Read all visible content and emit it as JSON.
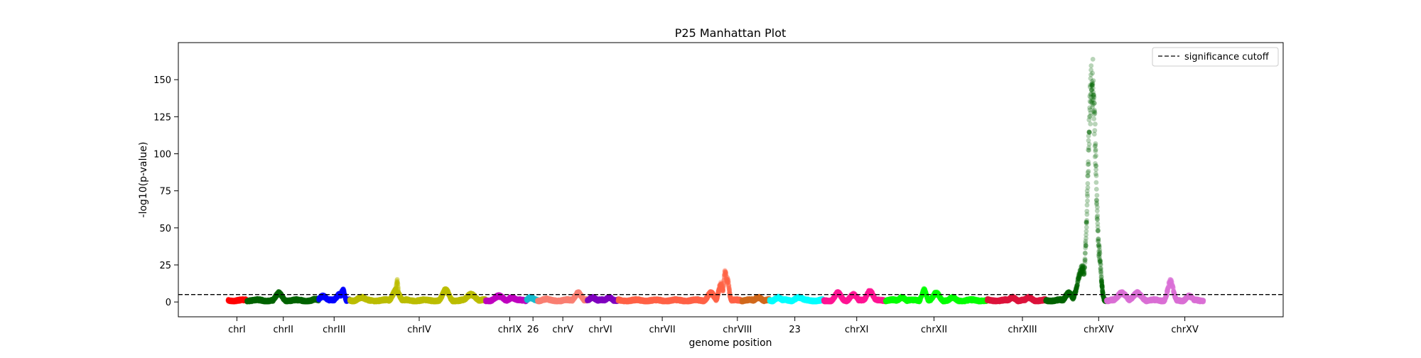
{
  "chart_data": {
    "type": "scatter",
    "title": "P25 Manhattan Plot",
    "xlabel": "genome position",
    "ylabel": "-log10(p-value)",
    "ylim": [
      -10,
      175
    ],
    "y_ticks": [
      0,
      25,
      50,
      75,
      100,
      125,
      150
    ],
    "x_range": [
      0,
      1000
    ],
    "grid": false,
    "legend": {
      "placement": "top-right",
      "entries": [
        {
          "label": "significance cutoff",
          "style": "dashed",
          "color": "#000000"
        }
      ]
    },
    "significance_cutoff": 5,
    "x_tick_labels": [
      {
        "label": "chrI",
        "x": 53
      },
      {
        "label": "chrII",
        "x": 95
      },
      {
        "label": "chrIII",
        "x": 141
      },
      {
        "label": "chrIV",
        "x": 218
      },
      {
        "label": "chrIX",
        "x": 300
      },
      {
        "label": "26",
        "x": 321
      },
      {
        "label": "chrV",
        "x": 348
      },
      {
        "label": "chrVI",
        "x": 382
      },
      {
        "label": "chrVII",
        "x": 438
      },
      {
        "label": "chrVIII",
        "x": 506
      },
      {
        "label": "23",
        "x": 558
      },
      {
        "label": "chrXI",
        "x": 614
      },
      {
        "label": "chrXII",
        "x": 684
      },
      {
        "label": "chrXIII",
        "x": 764
      },
      {
        "label": "chrXIV",
        "x": 833
      },
      {
        "label": "chrXV",
        "x": 911
      }
    ],
    "series": [
      {
        "color": "#ff0000",
        "x": [
          45,
          62
        ],
        "peaks": []
      },
      {
        "color": "#006400",
        "x": [
          62,
          127
        ],
        "peaks": [
          {
            "x": 91,
            "y": 6,
            "w": 3
          },
          {
            "x": 124,
            "y": 2,
            "w": 3
          }
        ]
      },
      {
        "color": "#0000ff",
        "x": [
          127,
          155
        ],
        "peaks": [
          {
            "x": 131,
            "y": 4,
            "w": 3
          },
          {
            "x": 146,
            "y": 5,
            "w": 3
          },
          {
            "x": 149,
            "y": 8,
            "w": 1.5
          }
        ]
      },
      {
        "color": "#bcbd00",
        "x": [
          155,
          278
        ],
        "peaks": [
          {
            "x": 166,
            "y": 3,
            "w": 4
          },
          {
            "x": 197,
            "y": 8,
            "w": 3
          },
          {
            "x": 198,
            "y": 14,
            "w": 1
          },
          {
            "x": 242,
            "y": 8,
            "w": 3
          },
          {
            "x": 265,
            "y": 5,
            "w": 4
          }
        ]
      },
      {
        "color": "#c000c0",
        "x": [
          278,
          315
        ],
        "peaks": [
          {
            "x": 290,
            "y": 4,
            "w": 4
          },
          {
            "x": 302,
            "y": 3,
            "w": 3
          }
        ]
      },
      {
        "color": "#17becf",
        "x": [
          315,
          325
        ],
        "peaks": [
          {
            "x": 319,
            "y": 3,
            "w": 3
          }
        ]
      },
      {
        "color": "#fa8072",
        "x": [
          325,
          370
        ],
        "peaks": [
          {
            "x": 333,
            "y": 2,
            "w": 4
          },
          {
            "x": 362,
            "y": 6,
            "w": 3
          }
        ]
      },
      {
        "color": "#8000c0",
        "x": [
          370,
          398
        ],
        "peaks": [
          {
            "x": 375,
            "y": 3,
            "w": 3
          },
          {
            "x": 390,
            "y": 3,
            "w": 3
          }
        ]
      },
      {
        "color": "#ff6347",
        "x": [
          398,
          510
        ],
        "peaks": [
          {
            "x": 482,
            "y": 6,
            "w": 3
          },
          {
            "x": 491,
            "y": 12,
            "w": 2
          },
          {
            "x": 495,
            "y": 20,
            "w": 1.5
          },
          {
            "x": 497,
            "y": 15,
            "w": 1.5
          }
        ]
      },
      {
        "color": "#d2691e",
        "x": [
          510,
          535
        ],
        "peaks": [
          {
            "x": 525,
            "y": 3,
            "w": 3
          }
        ]
      },
      {
        "color": "#00ffff",
        "x": [
          535,
          584
        ],
        "peaks": [
          {
            "x": 543,
            "y": 3,
            "w": 3
          },
          {
            "x": 562,
            "y": 3,
            "w": 4
          }
        ]
      },
      {
        "color": "#ff1493",
        "x": [
          584,
          640
        ],
        "peaks": [
          {
            "x": 597,
            "y": 6,
            "w": 3
          },
          {
            "x": 611,
            "y": 5,
            "w": 3
          },
          {
            "x": 626,
            "y": 7,
            "w": 3
          }
        ]
      },
      {
        "color": "#00ff00",
        "x": [
          640,
          732
        ],
        "peaks": [
          {
            "x": 655,
            "y": 3,
            "w": 3
          },
          {
            "x": 675,
            "y": 8,
            "w": 2
          },
          {
            "x": 686,
            "y": 6,
            "w": 3
          },
          {
            "x": 701,
            "y": 3,
            "w": 3
          }
        ]
      },
      {
        "color": "#dc143c",
        "x": [
          732,
          785
        ],
        "peaks": [
          {
            "x": 755,
            "y": 3,
            "w": 3
          },
          {
            "x": 770,
            "y": 3,
            "w": 3
          }
        ]
      },
      {
        "color": "#006400",
        "x": [
          785,
          840
        ],
        "peaks": [
          {
            "x": 806,
            "y": 6,
            "w": 3
          },
          {
            "x": 818,
            "y": 22,
            "w": 4
          },
          {
            "x": 827,
            "y": 150,
            "w": 3.5
          },
          {
            "x": 833,
            "y": 35,
            "w": 2
          }
        ]
      },
      {
        "color": "#da70d6",
        "x": [
          840,
          928
        ],
        "peaks": [
          {
            "x": 854,
            "y": 6,
            "w": 4
          },
          {
            "x": 868,
            "y": 6,
            "w": 4
          },
          {
            "x": 898,
            "y": 14,
            "w": 2.5
          },
          {
            "x": 915,
            "y": 4,
            "w": 3
          }
        ]
      }
    ]
  }
}
